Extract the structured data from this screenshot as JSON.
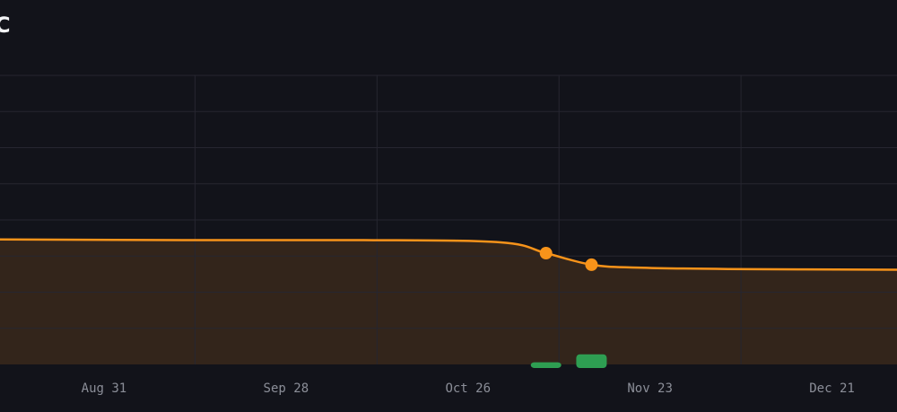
{
  "page": {
    "title": "C"
  },
  "chart_data": {
    "type": "line",
    "x": [
      "2024-08-15",
      "2024-09-12",
      "2024-10-10",
      "2024-10-31",
      "2024-11-07",
      "2024-11-14",
      "2024-11-21",
      "2024-12-05",
      "2024-12-31"
    ],
    "series": [
      {
        "color": "#f7931a",
        "values": [
          173,
          172,
          172,
          169,
          154,
          138,
          134,
          132,
          131
        ]
      }
    ],
    "markers": [
      {
        "x": "2024-11-07",
        "y": 154
      },
      {
        "x": "2024-11-14",
        "y": 138
      }
    ],
    "bars": [
      {
        "x": "2024-11-07",
        "value": 3,
        "color": "#2e9e52"
      },
      {
        "x": "2024-11-14",
        "value": 14,
        "color": "#2e9e52"
      }
    ],
    "x_ticks": [
      "Aug 31",
      "Sep 28",
      "Oct 26",
      "Nov 23",
      "Dec 21"
    ],
    "x_tick_dates": [
      "2024-08-31",
      "2024-09-28",
      "2024-10-26",
      "2024-11-23",
      "2024-12-21"
    ],
    "xlim": [
      "2024-08-15",
      "2024-12-31"
    ],
    "ylim": [
      0,
      400
    ],
    "grid": true,
    "colors": {
      "background": "#12131a",
      "area": "#33251b",
      "line": "#f7931a",
      "bar": "#2e9e52",
      "grid": "#262630",
      "tick_label": "#8b8e98"
    }
  }
}
